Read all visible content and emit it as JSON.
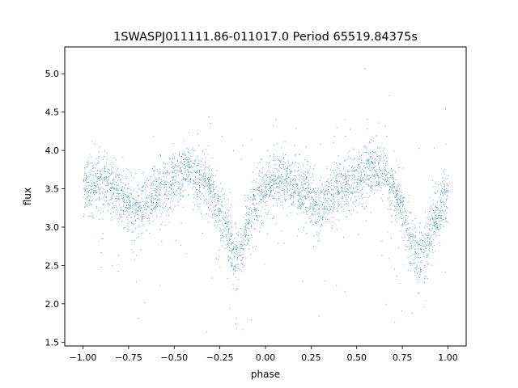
{
  "chart_data": {
    "type": "scatter",
    "title": "1SWASPJ011111.86-011017.0 Period 65519.84375s",
    "xlabel": "phase",
    "ylabel": "flux",
    "xlim": [
      -1.1,
      1.1
    ],
    "ylim": [
      1.45,
      5.35
    ],
    "grid": false,
    "legend": "none",
    "x_ticks": [
      -1.0,
      -0.75,
      -0.5,
      -0.25,
      0.0,
      0.25,
      0.5,
      0.75,
      1.0
    ],
    "x_tick_labels": [
      "−1.00",
      "−0.75",
      "−0.50",
      "−0.25",
      "0.00",
      "0.25",
      "0.50",
      "0.75",
      "1.00"
    ],
    "y_ticks": [
      1.5,
      2.0,
      2.5,
      3.0,
      3.5,
      4.0,
      4.5,
      5.0
    ],
    "y_tick_labels": [
      "1.5",
      "2.0",
      "2.5",
      "3.0",
      "3.5",
      "4.0",
      "4.5",
      "5.0"
    ],
    "marker_color": "#1f77b4",
    "light_curve": {
      "phase": [
        -1.0,
        -0.9,
        -0.8,
        -0.7,
        -0.6,
        -0.5,
        -0.42,
        -0.35,
        -0.3,
        -0.25,
        -0.2,
        -0.17,
        -0.15,
        -0.13,
        -0.1,
        -0.05,
        0.0,
        0.1,
        0.2,
        0.3,
        0.4,
        0.5,
        0.58,
        0.65,
        0.7,
        0.75,
        0.8,
        0.83,
        0.85,
        0.87,
        0.9,
        0.95,
        1.0
      ],
      "flux": [
        3.5,
        3.58,
        3.4,
        3.25,
        3.45,
        3.62,
        3.75,
        3.6,
        3.45,
        3.2,
        2.9,
        2.65,
        2.6,
        2.7,
        3.05,
        3.4,
        3.55,
        3.62,
        3.45,
        3.3,
        3.5,
        3.65,
        3.8,
        3.65,
        3.5,
        3.2,
        2.85,
        2.62,
        2.6,
        2.7,
        2.95,
        3.2,
        3.45
      ],
      "scatter": 0.18
    }
  }
}
